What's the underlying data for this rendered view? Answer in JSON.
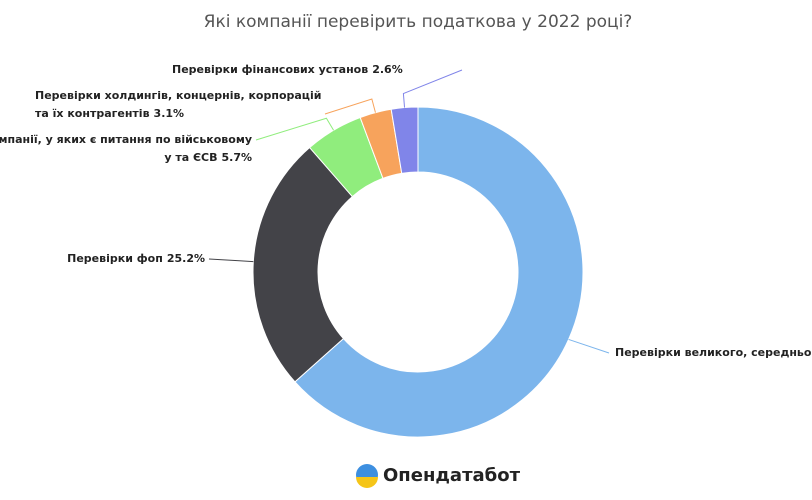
{
  "chart_data": {
    "type": "donut",
    "title": "Які компанії перевірить податкова у 2022 році?",
    "categories": [
      [
        "Перевірки великого, середнього"
      ],
      [
        "Перевірки фоп"
      ],
      [
        "компанії, у яких є питання по військовому",
        "у та ЄСВ"
      ],
      [
        "Перевірки холдингів, концернів, корпорацій",
        "та їх контрагентів"
      ],
      [
        "Перевірки фінансових установ"
      ]
    ],
    "values": [
      63.4,
      25.2,
      5.7,
      3.1,
      2.6
    ],
    "value_labels": [
      null,
      "25.2%",
      "5.7%",
      "3.1%",
      "2.6%"
    ],
    "colors": [
      "#7cb5ec",
      "#434348",
      "#90ed7d",
      "#f7a35c",
      "#8085e9"
    ]
  },
  "logo": {
    "text": "Опендатабот"
  }
}
